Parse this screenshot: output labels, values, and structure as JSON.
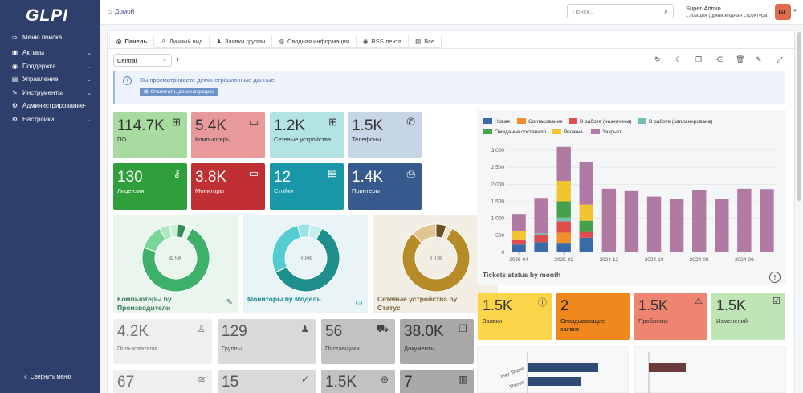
{
  "app": {
    "logo": "GLPI"
  },
  "sidebar": {
    "items": [
      {
        "label": "Меню поиска",
        "icon": "search-menu-icon",
        "chevron": false
      },
      {
        "label": "Активы",
        "icon": "assets-icon",
        "chevron": true
      },
      {
        "label": "Поддержка",
        "icon": "support-icon",
        "chevron": true
      },
      {
        "label": "Управление",
        "icon": "management-icon",
        "chevron": true
      },
      {
        "label": "Инструменты",
        "icon": "tools-icon",
        "chevron": true
      },
      {
        "label": "Администрирование-",
        "icon": "admin-icon",
        "chevron": false
      },
      {
        "label": "Настройки",
        "icon": "settings-icon",
        "chevron": true
      }
    ],
    "collapse_label": "Свернуть меню"
  },
  "header": {
    "breadcrumb": "Домой",
    "search_placeholder": "Поиск...",
    "user_name": "Super-Admin",
    "user_entity": "...изация (древовидная структура)",
    "avatar_initials": "GL"
  },
  "tabs": [
    {
      "label": "Панель",
      "active": true
    },
    {
      "label": "Личный вид",
      "active": false
    },
    {
      "label": "Заявки группы",
      "active": false
    },
    {
      "label": "Сводная информация",
      "active": false
    },
    {
      "label": "RSS лента",
      "active": false
    },
    {
      "label": "Все",
      "active": false
    }
  ],
  "dashboard_select": "Central",
  "alert": {
    "text": "Вы просматриваете демонстрационные данные.",
    "button": "Отключить демонстрацию"
  },
  "tiles": [
    {
      "value": "114.7K",
      "label": "ПО",
      "bg": "#a8dba0",
      "fg": "#333"
    },
    {
      "value": "5.4K",
      "label": "Компьютеры",
      "bg": "#e89a9a",
      "fg": "#333"
    },
    {
      "value": "1.2K",
      "label": "Сетевые устройства",
      "bg": "#b4e3e3",
      "fg": "#333"
    },
    {
      "value": "1.5K",
      "label": "Телефоны",
      "bg": "#c7d6e6",
      "fg": "#333"
    },
    {
      "value": "130",
      "label": "Лицензии",
      "bg": "#2e9f3a",
      "fg": "#fff"
    },
    {
      "value": "3.8K",
      "label": "Мониторы",
      "bg": "#bf2f33",
      "fg": "#fff"
    },
    {
      "value": "12",
      "label": "Стойки",
      "bg": "#1797a8",
      "fg": "#fff"
    },
    {
      "value": "1.4K",
      "label": "Принтеры",
      "bg": "#365a8e",
      "fg": "#fff"
    }
  ],
  "donuts": [
    {
      "title": "Компьютеры by Производители",
      "center": "4.5K",
      "bg": "#eaf5ee",
      "title_color": "#3a7a51",
      "slices": [
        0.72,
        0.12,
        0.05,
        0.04,
        0.04,
        0.03
      ],
      "colors": [
        "#3db06a",
        "#7ad59a",
        "#aee6c2",
        "#cdeed9",
        "#2f8f54",
        "#e0f5e7"
      ]
    },
    {
      "title": "Мониторы by Модель",
      "center": "3.8K",
      "bg": "#e9f4f6",
      "title_color": "#1f8c96",
      "slices": [
        0.6,
        0.28,
        0.06,
        0.06
      ],
      "colors": [
        "#1e8f8a",
        "#55cdd0",
        "#9ee3e3",
        "#c5efef"
      ]
    },
    {
      "title": "Сетевые устройства by Статус",
      "center": "1.0K",
      "bg": "#f3eee4",
      "title_color": "#7b6340",
      "slices": [
        0.8,
        0.12,
        0.05,
        0.03
      ],
      "colors": [
        "#b88b29",
        "#e0c590",
        "#6b5126",
        "#f1e5cb"
      ]
    }
  ],
  "small_tiles": [
    {
      "value": "4.2K",
      "label": "Пользователи",
      "bg": "#efefef",
      "fg": "#777",
      "icon": "user-icon"
    },
    {
      "value": "129",
      "label": "Группы",
      "bg": "#d9d9d9",
      "fg": "#555",
      "icon": "group-icon"
    },
    {
      "value": "56",
      "label": "Поставщики",
      "bg": "#c2c2c2",
      "fg": "#444",
      "icon": "supplier-icon"
    },
    {
      "value": "38.0K",
      "label": "Документы",
      "bg": "#a9a9a9",
      "fg": "#333",
      "icon": "documents-icon"
    },
    {
      "value": "67",
      "label": "",
      "bg": "#efefef",
      "fg": "#777",
      "icon": "layers-icon"
    },
    {
      "value": "15",
      "label": "",
      "bg": "#d9d9d9",
      "fg": "#555",
      "icon": "user-check-icon"
    },
    {
      "value": "1.5K",
      "label": "",
      "bg": "#c2c2c2",
      "fg": "#444",
      "icon": "lifebuoy-icon"
    },
    {
      "value": "7",
      "label": "",
      "bg": "#a9a9a9",
      "fg": "#333",
      "icon": "projects-icon"
    }
  ],
  "status_tiles": [
    {
      "value": "1.5K",
      "label": "Заявки",
      "bg": "#fbd44a",
      "fg": "#333",
      "icon": "alert-circle-icon"
    },
    {
      "value": "2",
      "label": "Опаздывающие заявки",
      "bg": "#f0881d",
      "fg": "#222",
      "icon": ""
    },
    {
      "value": "1.5K",
      "label": "Проблемы",
      "bg": "#ef8470",
      "fg": "#333",
      "icon": "warning-icon"
    },
    {
      "value": "1.5K",
      "label": "Изменений",
      "bg": "#bfe4b6",
      "fg": "#333",
      "icon": "clipboard-check-icon"
    }
  ],
  "ticket_chart_title": "Tickets status by month",
  "chart_data": [
    {
      "type": "bar",
      "stacked": true,
      "legend_position": "top",
      "grid": true,
      "ylim": [
        0,
        3000
      ],
      "yticks": [
        0,
        500,
        1000,
        1500,
        2000,
        2500,
        3000
      ],
      "x_tick_labels": [
        "2025-04",
        "2025-02",
        "2024-12",
        "2024-10",
        "2024-08",
        "2024-06"
      ],
      "categories": [
        "2025-04",
        "2025-03",
        "2025-02",
        "2025-01",
        "2024-12",
        "2024-11",
        "2024-10",
        "2024-09",
        "2024-08",
        "2024-07",
        "2024-06",
        "2024-05"
      ],
      "series": [
        {
          "name": "Новая",
          "color": "#3c6aa8",
          "values": [
            230,
            300,
            280,
            430,
            0,
            0,
            0,
            0,
            0,
            0,
            0,
            0
          ]
        },
        {
          "name": "Согласование",
          "color": "#f08f2c",
          "values": [
            0,
            0,
            300,
            0,
            0,
            0,
            0,
            0,
            0,
            0,
            0,
            0
          ]
        },
        {
          "name": "В работе (назначена)",
          "color": "#de4e4c",
          "values": [
            130,
            200,
            330,
            170,
            0,
            0,
            0,
            0,
            0,
            0,
            0,
            0
          ]
        },
        {
          "name": "В работе (запланирована)",
          "color": "#72bfb6",
          "values": [
            0,
            60,
            110,
            0,
            0,
            0,
            0,
            0,
            0,
            0,
            0,
            0
          ]
        },
        {
          "name": "Ожидание составило",
          "color": "#45a04b",
          "values": [
            0,
            0,
            480,
            330,
            0,
            0,
            0,
            0,
            0,
            0,
            0,
            0
          ]
        },
        {
          "name": "Решена",
          "color": "#f2c530",
          "values": [
            270,
            0,
            600,
            470,
            0,
            0,
            0,
            0,
            0,
            0,
            0,
            0
          ]
        },
        {
          "name": "Закрыто",
          "color": "#b07aa2",
          "values": [
            500,
            1040,
            1000,
            1260,
            1870,
            1800,
            1640,
            1570,
            1820,
            1560,
            1870,
            1860
          ]
        }
      ]
    },
    {
      "type": "bar",
      "orientation": "horizontal",
      "categories": [
        "May Shane",
        "Theron"
      ],
      "series": [
        {
          "name": "",
          "color": "#2f4b75",
          "values": [
            100,
            75
          ]
        }
      ]
    },
    {
      "type": "bar",
      "orientation": "horizontal",
      "categories": [
        ""
      ],
      "series": [
        {
          "name": "",
          "color": "#6b3a3a",
          "values": [
            100
          ]
        }
      ]
    }
  ]
}
